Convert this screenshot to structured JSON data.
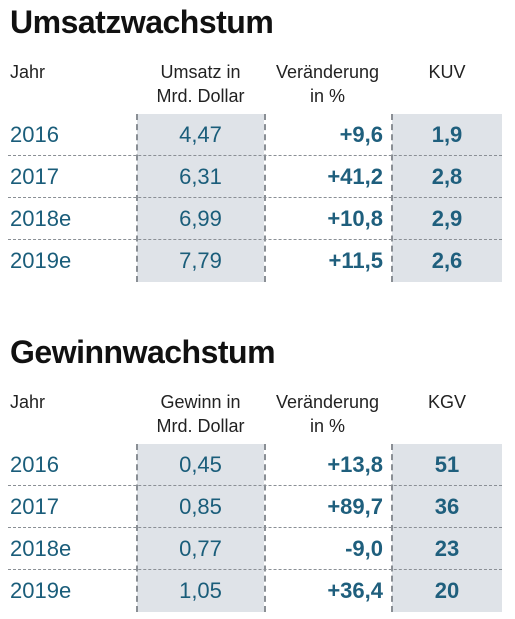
{
  "sections": [
    {
      "title": "Umsatzwachstum",
      "headers": {
        "col1": "Jahr",
        "col2_line1": "Umsatz in",
        "col2_line2": "Mrd. Dollar",
        "col3_line1": "Veränderung",
        "col3_line2": "in %",
        "col4": "KUV"
      },
      "rows": [
        {
          "year": "2016",
          "value": "4,47",
          "change": "+9,6",
          "ratio": "1,9"
        },
        {
          "year": "2017",
          "value": "6,31",
          "change": "+41,2",
          "ratio": "2,8"
        },
        {
          "year": "2018e",
          "value": "6,99",
          "change": "+10,8",
          "ratio": "2,9"
        },
        {
          "year": "2019e",
          "value": "7,79",
          "change": "+11,5",
          "ratio": "2,6"
        }
      ]
    },
    {
      "title": "Gewinnwachstum",
      "headers": {
        "col1": "Jahr",
        "col2_line1": "Gewinn in",
        "col2_line2": "Mrd. Dollar",
        "col3_line1": "Veränderung",
        "col3_line2": "in %",
        "col4": "KGV"
      },
      "rows": [
        {
          "year": "2016",
          "value": "0,45",
          "change": "+13,8",
          "ratio": "51"
        },
        {
          "year": "2017",
          "value": "0,85",
          "change": "+89,7",
          "ratio": "36"
        },
        {
          "year": "2018e",
          "value": "0,77",
          "change": "-9,0",
          "ratio": "23"
        },
        {
          "year": "2019e",
          "value": "1,05",
          "change": "+36,4",
          "ratio": "20"
        }
      ]
    }
  ],
  "colors": {
    "text_accent": "#1a5d7a",
    "shade": "#dfe3e8",
    "dash": "#8a8f95"
  }
}
